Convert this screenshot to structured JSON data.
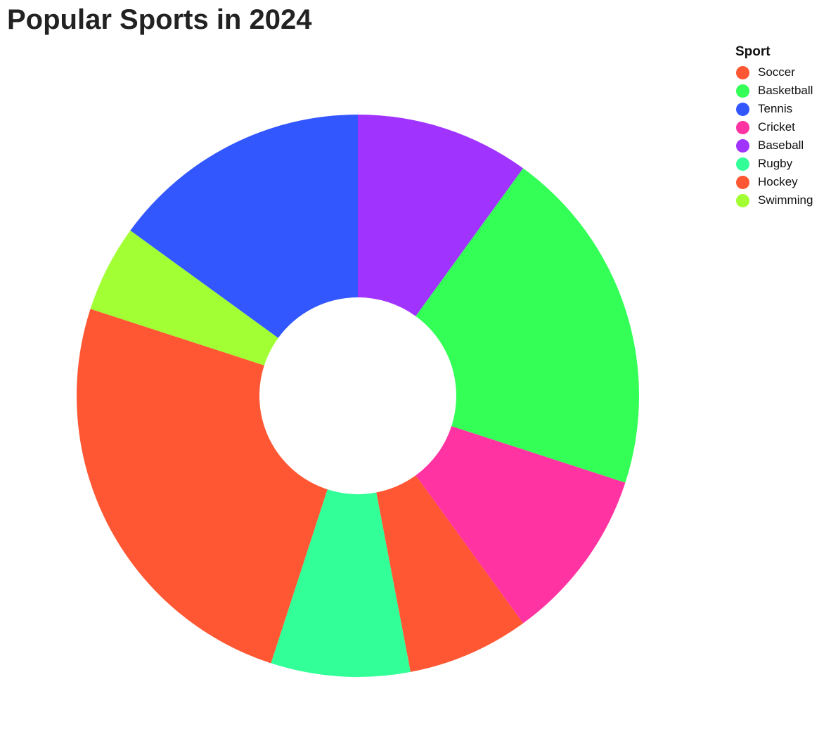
{
  "chart_data": {
    "type": "pie",
    "donut": true,
    "title": "Popular Sports in 2024",
    "legend_title": "Sport",
    "legend_position": "top-right",
    "categories": [
      "Soccer",
      "Basketball",
      "Tennis",
      "Cricket",
      "Baseball",
      "Rugby",
      "Hockey",
      "Swimming"
    ],
    "values": [
      25,
      20,
      15,
      10,
      10,
      8,
      7,
      5
    ],
    "colors": [
      "#ff5733",
      "#33ff57",
      "#3357ff",
      "#ff33a1",
      "#a133ff",
      "#33ff99",
      "#ff5733",
      "#a1ff33"
    ],
    "slice_order": [
      "Baseball",
      "Basketball",
      "Cricket",
      "Hockey",
      "Rugby",
      "Soccer",
      "Swimming",
      "Tennis"
    ]
  }
}
